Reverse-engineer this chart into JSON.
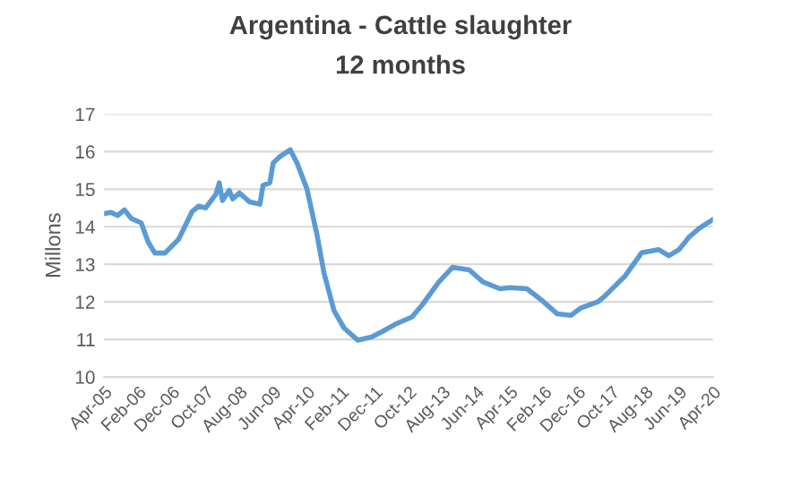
{
  "chart_data": {
    "type": "line",
    "title": "Argentina - Cattle slaughter",
    "subtitle": "12 months",
    "ylabel": "Millons",
    "x": [
      "2005-04",
      "2005-06",
      "2005-08",
      "2005-10",
      "2005-12",
      "2006-03",
      "2006-05",
      "2006-07",
      "2006-10",
      "2007-02",
      "2007-06",
      "2007-08",
      "2007-10",
      "2008-01",
      "2008-02",
      "2008-03",
      "2008-05",
      "2008-06",
      "2008-08",
      "2008-11",
      "2009-02",
      "2009-03",
      "2009-05",
      "2009-06",
      "2009-08",
      "2009-11",
      "2010-01",
      "2010-04",
      "2010-07",
      "2010-09",
      "2010-12",
      "2011-03",
      "2011-07",
      "2011-11",
      "2012-02",
      "2012-06",
      "2012-11",
      "2013-02",
      "2013-07",
      "2013-11",
      "2014-04",
      "2014-08",
      "2015-01",
      "2015-04",
      "2015-09",
      "2016-01",
      "2016-06",
      "2016-10",
      "2017-01",
      "2017-06",
      "2017-08",
      "2018-02",
      "2018-07",
      "2018-12",
      "2019-03",
      "2019-06",
      "2019-09",
      "2019-12",
      "2020-04"
    ],
    "series": [
      {
        "color": "#5b9bd5",
        "values": [
          14.35,
          14.38,
          14.3,
          14.45,
          14.22,
          14.1,
          13.6,
          13.3,
          13.3,
          13.67,
          14.4,
          14.55,
          14.5,
          14.86,
          15.17,
          14.7,
          14.97,
          14.74,
          14.9,
          14.66,
          14.6,
          15.1,
          15.17,
          15.7,
          15.87,
          16.05,
          15.7,
          15.0,
          13.77,
          12.77,
          11.76,
          11.3,
          10.98,
          11.06,
          11.2,
          11.4,
          11.6,
          11.92,
          12.53,
          12.92,
          12.85,
          12.53,
          12.35,
          12.38,
          12.35,
          12.07,
          11.68,
          11.64,
          11.84,
          12.0,
          12.15,
          12.69,
          13.31,
          13.39,
          13.23,
          13.39,
          13.73,
          13.96,
          14.19
        ]
      }
    ],
    "xlim": [
      "2005-04",
      "2020-04"
    ],
    "xticks": [
      {
        "value": "2005-04",
        "label": "Apr-05"
      },
      {
        "value": "2006-02",
        "label": "Feb-06"
      },
      {
        "value": "2006-12",
        "label": "Dec-06"
      },
      {
        "value": "2007-10",
        "label": "Oct-07"
      },
      {
        "value": "2008-08",
        "label": "Aug-08"
      },
      {
        "value": "2009-06",
        "label": "Jun-09"
      },
      {
        "value": "2010-04",
        "label": "Apr-10"
      },
      {
        "value": "2011-02",
        "label": "Feb-11"
      },
      {
        "value": "2011-12",
        "label": "Dec-11"
      },
      {
        "value": "2012-10",
        "label": "Oct-12"
      },
      {
        "value": "2013-08",
        "label": "Aug-13"
      },
      {
        "value": "2014-06",
        "label": "Jun-14"
      },
      {
        "value": "2015-04",
        "label": "Apr-15"
      },
      {
        "value": "2016-02",
        "label": "Feb-16"
      },
      {
        "value": "2016-12",
        "label": "Dec-16"
      },
      {
        "value": "2017-10",
        "label": "Oct-17"
      },
      {
        "value": "2018-08",
        "label": "Aug-18"
      },
      {
        "value": "2019-06",
        "label": "Jun-19"
      },
      {
        "value": "2020-04",
        "label": "Apr-20"
      }
    ],
    "ylim": [
      10,
      17
    ],
    "yticks": [
      10,
      11,
      12,
      13,
      14,
      15,
      16,
      17
    ],
    "grid": "y",
    "marker": "none",
    "line_style": "solid"
  }
}
